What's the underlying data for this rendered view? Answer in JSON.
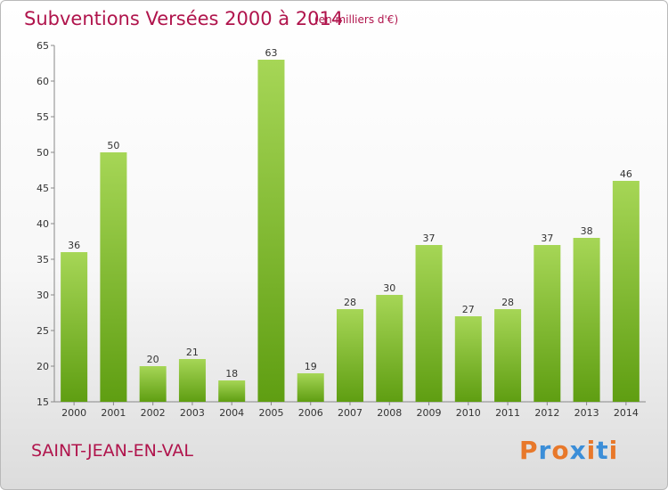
{
  "header": {
    "title": "Subventions Versées 2000 à 2014",
    "subtitle": "(en milliers d'€)"
  },
  "footer": {
    "commune": "SAINT-JEAN-EN-VAL",
    "brand": "Proxiti"
  },
  "colors": {
    "title": "#b0144c",
    "bar_top": "#a6d656",
    "bar_bottom": "#5f9e12",
    "brand_letters": [
      "#e8782a",
      "#3b8ed8",
      "#e8782a",
      "#3b8ed8",
      "#e8782a",
      "#3b8ed8",
      "#e8782a"
    ]
  },
  "chart_data": {
    "type": "bar",
    "title": "Subventions Versées 2000 à 2014",
    "xlabel": "",
    "ylabel": "",
    "categories": [
      "2000",
      "2001",
      "2002",
      "2003",
      "2004",
      "2005",
      "2006",
      "2007",
      "2008",
      "2009",
      "2010",
      "2011",
      "2012",
      "2013",
      "2014"
    ],
    "values": [
      36,
      50,
      20,
      21,
      18,
      63,
      19,
      28,
      30,
      37,
      27,
      28,
      37,
      38,
      46
    ],
    "ylim": [
      15,
      65
    ],
    "yticks": [
      15,
      20,
      25,
      30,
      35,
      40,
      45,
      50,
      55,
      60,
      65
    ],
    "grid": false,
    "legend": "none"
  }
}
